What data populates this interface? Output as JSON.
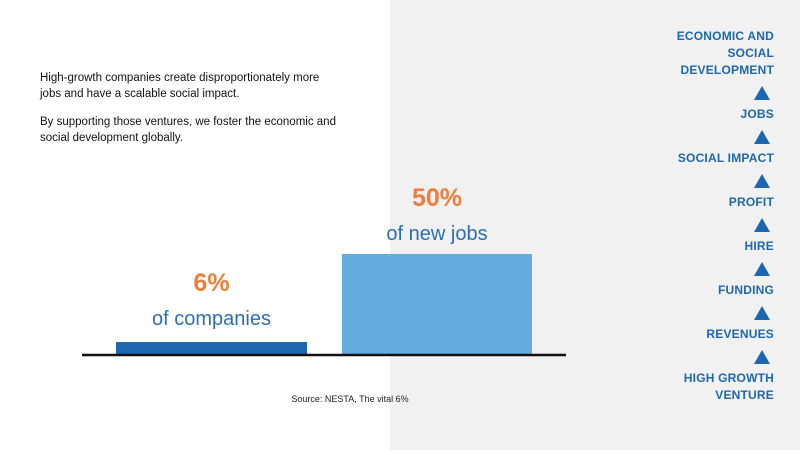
{
  "intro": {
    "paragraph1": "High-growth companies create disproportionately more jobs and have a scalable social impact.",
    "paragraph2": "By supporting those ventures, we foster the economic and social development globally."
  },
  "chart_data": {
    "type": "bar",
    "categories": [
      "of companies",
      "of new jobs"
    ],
    "values": [
      6,
      50
    ],
    "value_labels": [
      "6%",
      "50%"
    ],
    "ylim": [
      0,
      50
    ],
    "grid": false,
    "colors": {
      "bars": [
        "#1d67ae",
        "#62ace0"
      ],
      "value_labels": "#f07d3a",
      "category_labels": "#2a6fb5",
      "axis": "#111111"
    }
  },
  "source": "Source: NESTA, The vital 6%",
  "ladder": {
    "steps": [
      "ECONOMIC AND SOCIAL DEVELOPMENT",
      "JOBS",
      "SOCIAL IMPACT",
      "PROFIT",
      "HIRE",
      "FUNDING",
      "REVENUES",
      "HIGH GROWTH VENTURE"
    ],
    "icon": "triangle-up-icon",
    "color": "#1d67ae"
  }
}
